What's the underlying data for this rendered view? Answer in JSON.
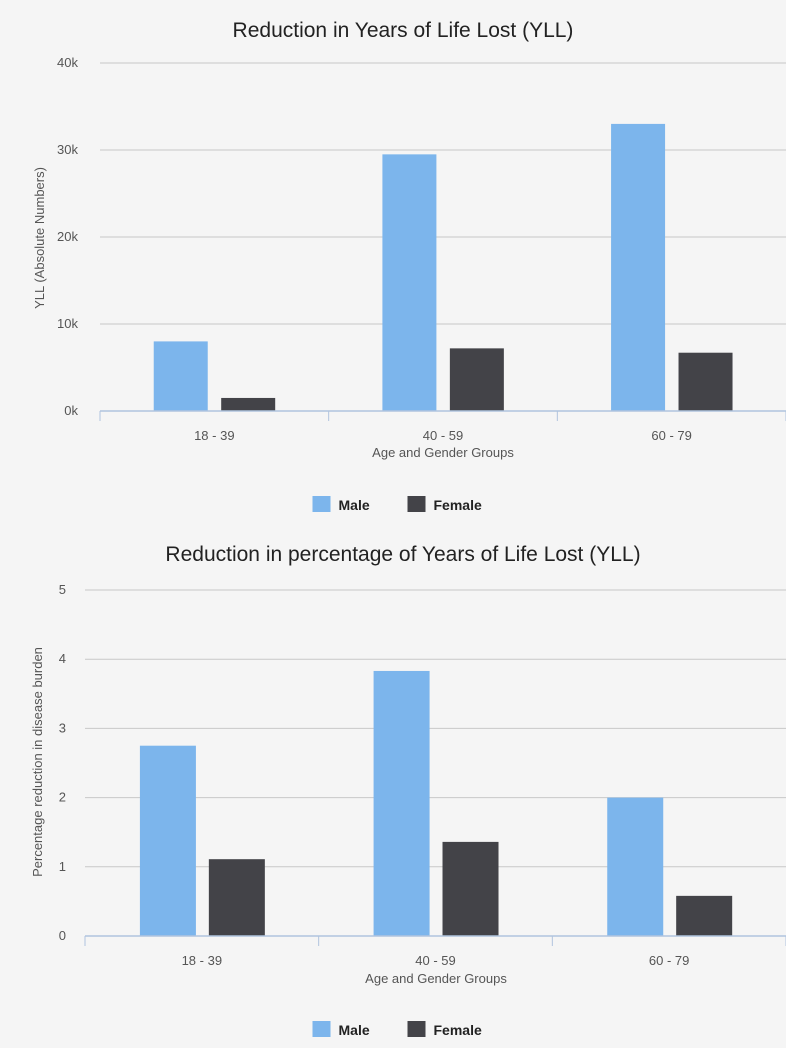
{
  "chart_data": [
    {
      "type": "bar",
      "title": "Reduction in Years of Life Lost (YLL)",
      "xlabel": "Age and Gender Groups",
      "ylabel": "YLL (Absolute Numbers)",
      "categories": [
        "18 - 39",
        "40 - 59",
        "60 - 79"
      ],
      "series": [
        {
          "name": "Male",
          "color": "#7cb5ec",
          "values": [
            8000,
            29500,
            33000
          ]
        },
        {
          "name": "Female",
          "color": "#434348",
          "values": [
            1500,
            7200,
            6700
          ]
        }
      ],
      "ylim": [
        0,
        40000
      ],
      "yticks": [
        0,
        10000,
        20000,
        30000,
        40000
      ],
      "ytick_labels": [
        "0k",
        "10k",
        "20k",
        "30k",
        "40k"
      ],
      "grid": true,
      "legend_position": "bottom-center"
    },
    {
      "type": "bar",
      "title": "Reduction in percentage of Years of Life Lost (YLL)",
      "xlabel": "Age and Gender Groups",
      "ylabel": "Percentage reduction in disease burden",
      "categories": [
        "18 - 39",
        "40 - 59",
        "60 - 79"
      ],
      "series": [
        {
          "name": "Male",
          "color": "#7cb5ec",
          "values": [
            2.75,
            3.83,
            2.0
          ]
        },
        {
          "name": "Female",
          "color": "#434348",
          "values": [
            1.11,
            1.36,
            0.58
          ]
        }
      ],
      "ylim": [
        0,
        5
      ],
      "yticks": [
        0,
        1,
        2,
        3,
        4,
        5
      ],
      "ytick_labels": [
        "0",
        "1",
        "2",
        "3",
        "4",
        "5"
      ],
      "grid": true,
      "legend_position": "bottom-center"
    }
  ]
}
